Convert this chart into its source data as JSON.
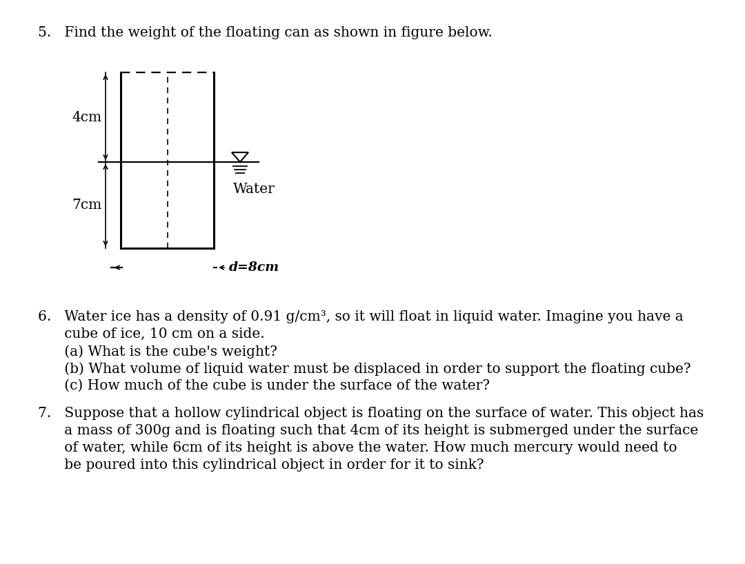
{
  "background_color": "#ffffff",
  "fig_width": 10.8,
  "fig_height": 8.18,
  "q5_line": "5.   Find the weight of the floating can as shown in figure below.",
  "q6_line1": "6.   Water ice has a density of 0.91 g/cm³, so it will float in liquid water. Imagine you have a",
  "q6_line2": "      cube of ice, 10 cm on a side.",
  "q6_line3": "      (a) What is the cube's weight?",
  "q6_line4": "      (b) What volume of liquid water must be displaced in order to support the floating cube?",
  "q6_line5": "      (c) How much of the cube is under the surface of the water?",
  "q7_line1": "7.   Suppose that a hollow cylindrical object is floating on the surface of water. This object has",
  "q7_line2": "      a mass of 300g and is floating such that 4cm of its height is submerged under the surface",
  "q7_line3": "      of water, while 6cm of its height is above the water. How much mercury would need to",
  "q7_line4": "      be poured into this cylindrical object in order for it to sink?",
  "font_size_text": 14.5,
  "font_family": "DejaVu Serif",
  "text_color": "#000000",
  "label_4cm": "4cm",
  "label_7cm": "7cm",
  "label_d8cm": "d=8cm",
  "label_water": "Water"
}
